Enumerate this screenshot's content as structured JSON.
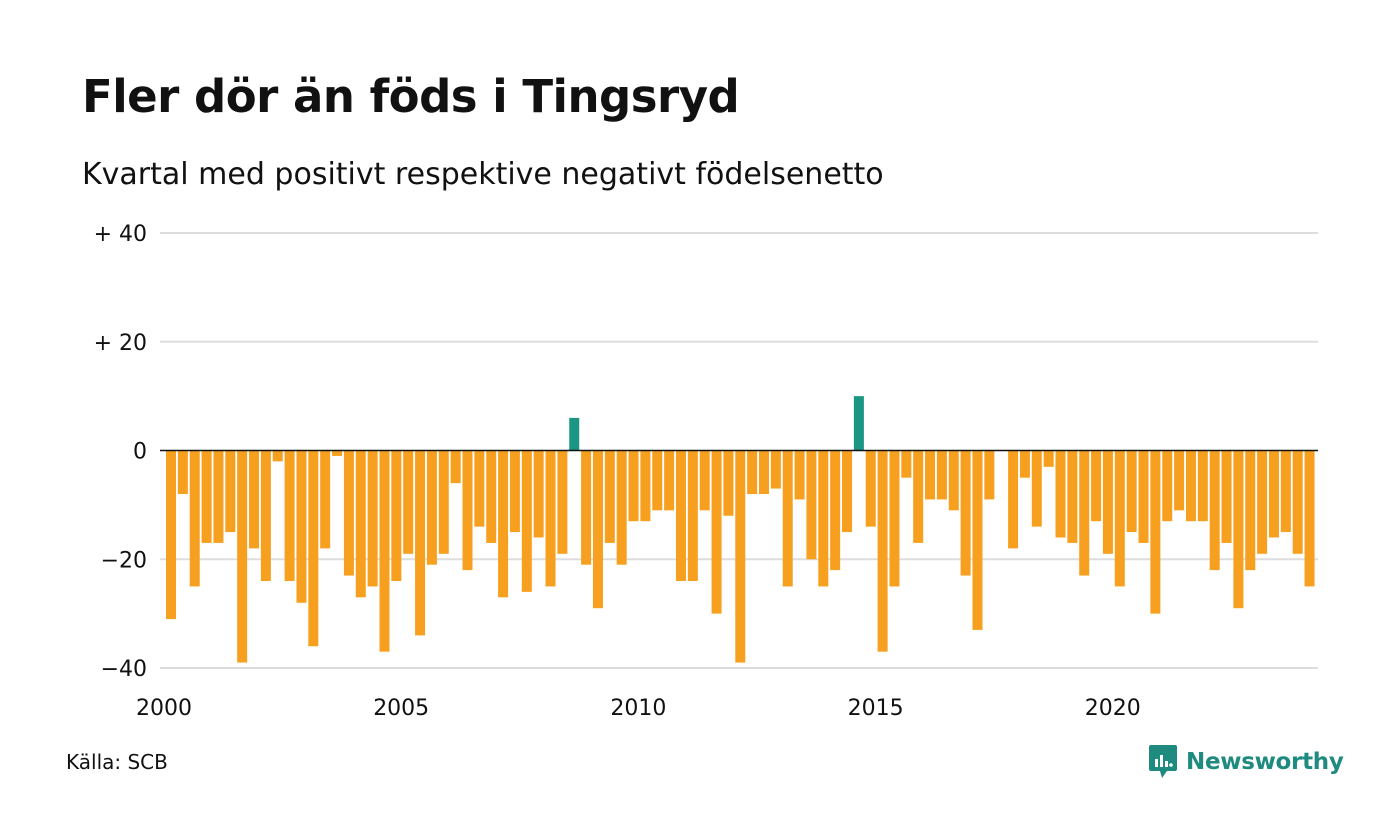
{
  "chart_data": {
    "type": "bar",
    "title": "Fler dör än föds i Tingsryd",
    "subtitle": "Kvartal med positivt respektive negativt födelsenetto",
    "ylim": [
      -40,
      40
    ],
    "yticks": [
      {
        "value": 40,
        "label": "+ 40"
      },
      {
        "value": 20,
        "label": "+ 20"
      },
      {
        "value": 0,
        "label": "0"
      },
      {
        "value": -20,
        "label": "−20"
      },
      {
        "value": -40,
        "label": "−40"
      }
    ],
    "xticks": [
      {
        "value": 2000,
        "label": "2000"
      },
      {
        "value": 2005,
        "label": "2005"
      },
      {
        "value": 2010,
        "label": "2010"
      },
      {
        "value": 2015,
        "label": "2015"
      },
      {
        "value": 2020,
        "label": "2020"
      }
    ],
    "x_start": "2000 Q1",
    "grid": true,
    "colors": {
      "positive": "#1a9683",
      "negative": "#f7a01f",
      "grid": "#dddddd",
      "zero": "#111111"
    },
    "values": [
      -31,
      -8,
      -25,
      -17,
      -17,
      -15,
      -39,
      -18,
      -24,
      -2,
      -24,
      -28,
      -36,
      -18,
      -1,
      -23,
      -27,
      -25,
      -37,
      -24,
      -19,
      -34,
      -21,
      -19,
      -6,
      -22,
      -14,
      -17,
      -27,
      -15,
      -26,
      -16,
      -25,
      -19,
      6,
      -21,
      -29,
      -17,
      -21,
      -13,
      -13,
      -11,
      -11,
      -24,
      -24,
      -11,
      -30,
      -12,
      -39,
      -8,
      -8,
      -7,
      -25,
      -9,
      -20,
      -25,
      -22,
      -15,
      10,
      -14,
      -37,
      -25,
      -5,
      -17,
      -9,
      -9,
      -11,
      -23,
      -33,
      -9,
      0,
      -18,
      -5,
      -14,
      -3,
      -16,
      -17,
      -23,
      -13,
      -19,
      -25,
      -15,
      -17,
      -30,
      -13,
      -11,
      -13,
      -13,
      -22,
      -17,
      -29,
      -22,
      -19,
      -16,
      -15,
      -19,
      -25
    ]
  },
  "source": "Källa: SCB",
  "brand": {
    "name": "Newsworthy",
    "icon": "newsworthy-logo-icon",
    "color": "#1e8a80"
  }
}
